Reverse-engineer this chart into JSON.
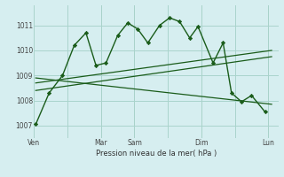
{
  "background_color": "#d6eef0",
  "grid_color": "#aad4cc",
  "line_color": "#1a5c1a",
  "xlabel": "Pression niveau de la mer( hPa )",
  "ylim": [
    1006.5,
    1011.8
  ],
  "yticks": [
    1007,
    1008,
    1009,
    1010,
    1011
  ],
  "xtick_labels": [
    "Ven",
    "",
    "Mar",
    "Sam",
    "",
    "Dim",
    "",
    "Lun"
  ],
  "xtick_positions": [
    0,
    1,
    2,
    3,
    4,
    5,
    6,
    7
  ],
  "xlim": [
    0,
    7.3
  ],
  "line1_x": [
    0.05,
    0.45,
    0.85,
    1.2,
    1.55,
    1.85,
    2.15,
    2.5,
    2.8,
    3.1,
    3.4,
    3.75,
    4.05,
    4.35,
    4.65,
    4.9,
    5.35,
    5.65,
    5.9,
    6.2,
    6.5,
    6.9
  ],
  "line1_y": [
    1007.05,
    1008.3,
    1009.0,
    1010.2,
    1010.7,
    1009.4,
    1009.5,
    1010.6,
    1011.1,
    1010.85,
    1010.3,
    1011.0,
    1011.3,
    1011.15,
    1010.5,
    1010.95,
    1009.5,
    1010.3,
    1008.3,
    1007.95,
    1008.2,
    1007.55
  ],
  "line2_x": [
    0.05,
    7.1
  ],
  "line2_y": [
    1008.9,
    1007.85
  ],
  "line3_x": [
    0.05,
    7.1
  ],
  "line3_y": [
    1008.4,
    1009.75
  ],
  "line4_x": [
    0.05,
    7.1
  ],
  "line4_y": [
    1008.7,
    1010.0
  ]
}
